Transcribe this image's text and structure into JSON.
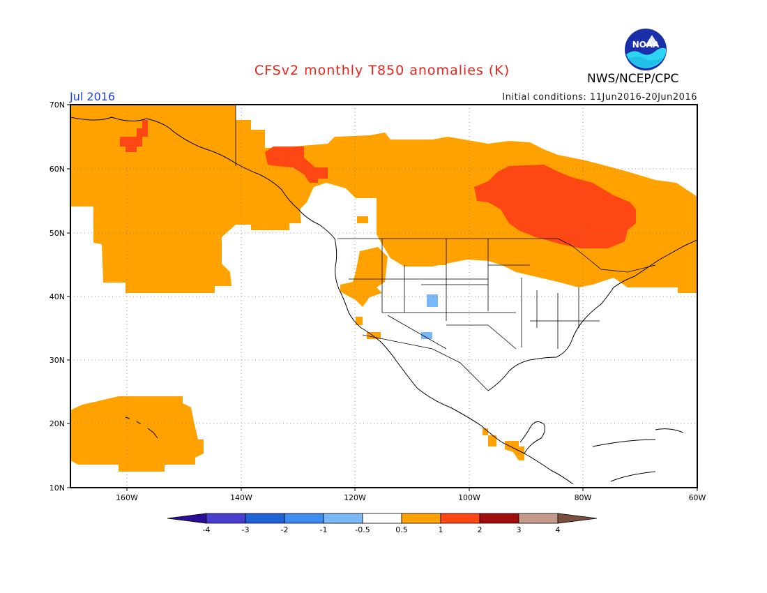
{
  "header": {
    "title": "CFSv2 monthly T850 anomalies (K)",
    "month": "Jul 2016",
    "initial_conditions": "Initial conditions: 11Jun2016-20Jun2016",
    "agency": "NWS/NCEP/CPC",
    "logo_text": "NOAA"
  },
  "map": {
    "lat_labels": [
      "70N",
      "60N",
      "50N",
      "40N",
      "30N",
      "20N",
      "10N"
    ],
    "lon_labels": [
      "160W",
      "140W",
      "120W",
      "100W",
      "80W",
      "60W"
    ],
    "lat_range": [
      10,
      70
    ],
    "lon_range": [
      -170,
      -60
    ]
  },
  "colorbar": {
    "labels": [
      "-4",
      "-3",
      "-2",
      "-1",
      "-0.5",
      "0.5",
      "1",
      "2",
      "3",
      "4"
    ],
    "colors": [
      "#2a0f96",
      "#4b3fcf",
      "#1f63d6",
      "#3d8df0",
      "#7ab8f5",
      "#ffffff",
      "#ffa200",
      "#ff4713",
      "#a00c0c",
      "#c49a8a",
      "#7a4f3e"
    ]
  },
  "colors": {
    "warm": "#ffa200",
    "hot": "#ff4713",
    "cool": "#7ab8f5",
    "title": "#e8221a",
    "month": "#1c3fe0"
  }
}
